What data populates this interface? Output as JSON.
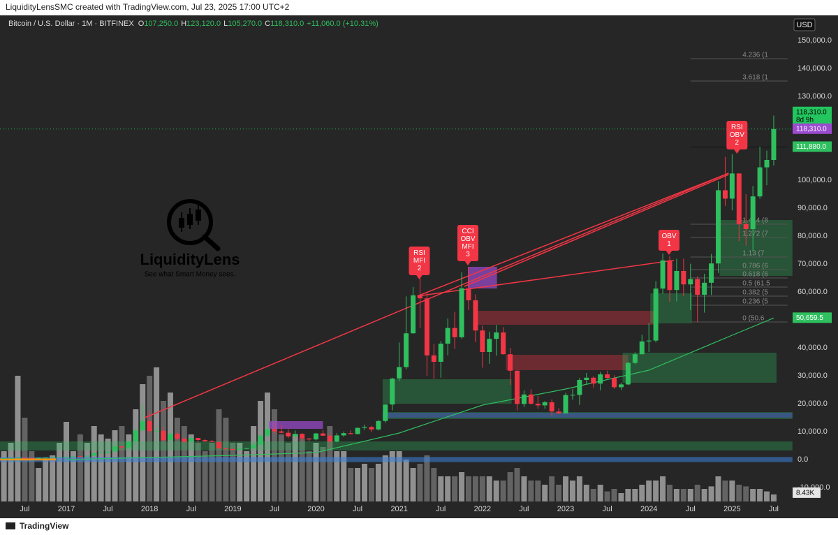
{
  "page": {
    "credit": "LiquidityLensSMC created with TradingView.com, Jul 23, 2025 17:00 UTC+2",
    "footer": "TradingView"
  },
  "chart_data": {
    "type": "candlestick",
    "symbol": "Bitcoin / U.S. Dollar · 1M · BITFINEX",
    "ohlc_header": [
      {
        "prefix": "O",
        "value": "107,250.0"
      },
      {
        "prefix": "H",
        "value": "123,120.0"
      },
      {
        "prefix": "L",
        "value": "105,270.0"
      },
      {
        "prefix": "C",
        "value": "118,310.0"
      }
    ],
    "change": "+11,060.0 (+10.31%)",
    "currency": "USD",
    "brand": {
      "name": "LiquidityLens",
      "tagline": "See what Smart Money sees."
    },
    "up_color": "#2fbf5f",
    "down_color": "#f23645",
    "volume_up_color": "#a3a3a3",
    "volume_down_color": "#6e6e6e",
    "categories": [
      null,
      null,
      null,
      "Jul",
      null,
      null,
      null,
      null,
      null,
      "2017",
      null,
      null,
      null,
      null,
      null,
      "Jul",
      null,
      null,
      null,
      null,
      null,
      "2018",
      null,
      null,
      null,
      null,
      null,
      "Jul",
      null,
      null,
      null,
      null,
      null,
      "2019",
      null,
      null,
      null,
      null,
      null,
      "Jul",
      null,
      null,
      null,
      null,
      null,
      "2020",
      null,
      null,
      null,
      null,
      null,
      "Jul",
      null,
      null,
      null,
      null,
      null,
      "2021",
      null,
      null,
      null,
      null,
      null,
      "Jul",
      null,
      null,
      null,
      null,
      null,
      "2022",
      null,
      null,
      null,
      null,
      null,
      "Jul",
      null,
      null,
      null,
      null,
      null,
      "2023",
      null,
      null,
      null,
      null,
      null,
      "Jul",
      null,
      null,
      null,
      null,
      null,
      "2024",
      null,
      null,
      null,
      null,
      null,
      "Jul",
      null,
      null,
      null,
      null,
      null,
      "2025",
      null,
      null,
      null,
      null,
      null,
      "Jul"
    ],
    "open": [
      416,
      448,
      531,
      673,
      624,
      575,
      609,
      700,
      745,
      963,
      970,
      1190,
      1080,
      1350,
      2300,
      2480,
      2880,
      4700,
      4340,
      6460,
      10400,
      13800,
      10200,
      10300,
      6900,
      9200,
      7500,
      6400,
      7730,
      7000,
      6600,
      6300,
      4000,
      3800,
      3450,
      3850,
      4100,
      5300,
      8600,
      10900,
      10100,
      9600,
      8300,
      9200,
      7550,
      7200,
      9350,
      8550,
      6430,
      8650,
      9450,
      9140,
      11350,
      11650,
      10780,
      13800,
      19700,
      29000,
      33100,
      45200,
      58800,
      57700,
      37300,
      35000,
      41500,
      47100,
      43800,
      61300,
      57000,
      46200,
      38500,
      43200,
      45500,
      37700,
      31800,
      19900,
      23300,
      20000,
      19400,
      20500,
      17200,
      16500,
      23100,
      23150,
      28500,
      29300,
      27200,
      30500,
      29200,
      25900,
      26900,
      34600,
      37700,
      42300,
      42600,
      61200,
      71300,
      60700,
      67500,
      62700,
      64600,
      59000,
      63300,
      70200,
      96400,
      93400,
      102400,
      84300,
      82500,
      94200,
      104600,
      107250
    ],
    "high": [
      470,
      550,
      780,
      705,
      626,
      630,
      740,
      757,
      975,
      1150,
      1200,
      1290,
      1400,
      2780,
      2990,
      2930,
      4770,
      5000,
      6470,
      11500,
      19700,
      17200,
      11800,
      11700,
      9800,
      10000,
      7780,
      8500,
      7780,
      7400,
      7000,
      6550,
      4300,
      4100,
      4200,
      4150,
      5620,
      9080,
      13900,
      13200,
      12300,
      10900,
      10400,
      9500,
      7750,
      9600,
      10500,
      9200,
      9470,
      10080,
      10400,
      11450,
      12480,
      12080,
      14100,
      19900,
      29300,
      41900,
      58400,
      61800,
      64900,
      59600,
      41300,
      42400,
      50500,
      52900,
      67000,
      69000,
      59100,
      47900,
      45800,
      48200,
      47400,
      40000,
      31900,
      24700,
      25200,
      22800,
      21000,
      21500,
      18400,
      23900,
      25300,
      29200,
      31000,
      29800,
      31400,
      31800,
      30200,
      27500,
      35000,
      38400,
      44700,
      48900,
      63900,
      73800,
      72800,
      71900,
      71900,
      70100,
      65600,
      66500,
      73600,
      99600,
      108300,
      109300,
      102500,
      95000,
      97900,
      112000,
      110600,
      123120
    ],
    "low": [
      415,
      436,
      520,
      600,
      470,
      570,
      605,
      685,
      740,
      750,
      920,
      890,
      1060,
      1350,
      2100,
      1830,
      2690,
      2970,
      4150,
      5500,
      10800,
      9400,
      6000,
      6600,
      6500,
      7000,
      5780,
      6070,
      5880,
      6100,
      6200,
      3600,
      3130,
      3350,
      3400,
      3700,
      4100,
      5300,
      7500,
      9100,
      9300,
      7700,
      7300,
      6500,
      6430,
      6850,
      8450,
      3850,
      6150,
      8130,
      8900,
      8980,
      10600,
      9850,
      10400,
      13200,
      17600,
      28100,
      32300,
      45000,
      47000,
      30000,
      28800,
      29300,
      37300,
      39600,
      43300,
      53500,
      42000,
      32900,
      34300,
      37200,
      37600,
      26700,
      17600,
      18800,
      19600,
      18200,
      18200,
      15500,
      16300,
      16500,
      21400,
      19600,
      26900,
      25800,
      24800,
      28900,
      25300,
      24900,
      26600,
      34100,
      37600,
      38500,
      41900,
      59300,
      56500,
      56600,
      58500,
      53500,
      49100,
      52600,
      58900,
      66800,
      90800,
      89200,
      78200,
      76600,
      74500,
      93400,
      98200,
      105270
    ],
    "close": [
      448,
      531,
      673,
      624,
      575,
      609,
      700,
      745,
      963,
      970,
      1190,
      1080,
      1350,
      2300,
      2480,
      2880,
      4700,
      4340,
      6460,
      10400,
      13800,
      10200,
      10300,
      6900,
      9200,
      7500,
      6400,
      7730,
      7000,
      6600,
      6300,
      4000,
      3800,
      3450,
      3850,
      4100,
      5300,
      8600,
      10900,
      10100,
      9600,
      8300,
      9200,
      7550,
      7200,
      9350,
      8550,
      6430,
      8650,
      9450,
      9140,
      11350,
      11650,
      10780,
      13800,
      19700,
      29000,
      33100,
      45200,
      58800,
      57700,
      37300,
      35000,
      41500,
      47100,
      43800,
      61300,
      57000,
      46200,
      38500,
      43200,
      45500,
      37700,
      31800,
      19900,
      23300,
      20000,
      19400,
      20500,
      17200,
      16500,
      23100,
      23150,
      28500,
      29300,
      27200,
      30500,
      29200,
      25900,
      26900,
      34600,
      37700,
      42300,
      42600,
      61200,
      71300,
      60700,
      67500,
      62700,
      64600,
      59000,
      63300,
      70200,
      96400,
      93400,
      102400,
      84300,
      82500,
      94200,
      104600,
      107250,
      118310
    ],
    "volume": [
      60,
      70,
      150,
      100,
      60,
      40,
      50,
      55,
      70,
      95,
      60,
      80,
      70,
      90,
      80,
      75,
      85,
      90,
      80,
      110,
      140,
      150,
      160,
      120,
      130,
      100,
      90,
      80,
      70,
      60,
      70,
      110,
      100,
      70,
      70,
      60,
      90,
      120,
      130,
      110,
      80,
      70,
      80,
      75,
      60,
      70,
      65,
      90,
      60,
      60,
      40,
      40,
      45,
      40,
      45,
      55,
      60,
      60,
      50,
      40,
      45,
      55,
      40,
      30,
      30,
      30,
      35,
      30,
      30,
      30,
      30,
      25,
      25,
      35,
      40,
      30,
      25,
      25,
      20,
      30,
      20,
      30,
      25,
      30,
      20,
      15,
      20,
      12,
      15,
      10,
      15,
      15,
      20,
      25,
      25,
      30,
      20,
      15,
      15,
      15,
      20,
      15,
      18,
      30,
      25,
      25,
      20,
      18,
      15,
      15,
      12,
      8.43
    ],
    "volume_lim": [
      0,
      580
    ],
    "volume_last_label": "8.43K",
    "ylim": [
      -15000,
      159000
    ],
    "yticks": [
      {
        "value": 150000,
        "label": "150,000.0"
      },
      {
        "value": 140000,
        "label": "140,000.0"
      },
      {
        "value": 130000,
        "label": "130,000.0"
      },
      {
        "value": 100000,
        "label": "100,000.0"
      },
      {
        "value": 90000,
        "label": "90,000.0"
      },
      {
        "value": 80000,
        "label": "80,000.0"
      },
      {
        "value": 70000,
        "label": "70,000.0"
      },
      {
        "value": 60000,
        "label": "60,000.0"
      },
      {
        "value": 40000,
        "label": "40,000.0"
      },
      {
        "value": 30000,
        "label": "30,000.0"
      },
      {
        "value": 20000,
        "label": "20,000.0"
      },
      {
        "value": 10000,
        "label": "10,000.0"
      },
      {
        "value": 0,
        "label": "0.0"
      },
      {
        "value": -10000,
        "label": "-10,000.0"
      }
    ],
    "grid": false,
    "price_labels": [
      {
        "value": 118310,
        "label": "118,310.0",
        "sub": "8d 9h",
        "color": "#22c55e"
      },
      {
        "value": 118310,
        "label": "118,310.0",
        "color": "#9c4bd0"
      },
      {
        "value": 111880,
        "label": "111,880.0",
        "color": "#2fbf5f"
      },
      {
        "value": 50659.5,
        "label": "50,659.5",
        "color": "#2fbf5f"
      }
    ],
    "moving_average": {
      "color": "#2fbf5f",
      "points": [
        [
          9,
          0
        ],
        [
          33,
          1500
        ],
        [
          45,
          2500
        ],
        [
          57,
          9500
        ],
        [
          69,
          19500
        ],
        [
          81,
          25250
        ],
        [
          93,
          32000
        ],
        [
          105,
          44500
        ],
        [
          111,
          50659.5
        ]
      ]
    },
    "trend_lines": [
      {
        "color": "#f23645",
        "points": [
          [
            20.3,
            15000
          ],
          [
            104.5,
            102500
          ]
        ]
      },
      {
        "color": "#f23645",
        "points": [
          [
            59.6,
            58500
          ],
          [
            104.5,
            102500
          ]
        ]
      },
      {
        "color": "#f23645",
        "points": [
          [
            66.4,
            62000
          ],
          [
            104.5,
            102000
          ]
        ]
      },
      {
        "color": "#f23645",
        "points": [
          [
            59.6,
            58500
          ],
          [
            96.6,
            71300
          ]
        ]
      }
    ],
    "zones": [
      {
        "i0": 67.9,
        "i1": 94.2,
        "v0": 48250,
        "v1": 53250,
        "color": "rgba(242,54,69,0.35)"
      },
      {
        "i0": 72.4,
        "i1": 90,
        "v0": 32000,
        "v1": 37500,
        "color": "rgba(242,54,69,0.35)"
      },
      {
        "i0": 66.9,
        "i1": 71.1,
        "v0": 61250,
        "v1": 69000,
        "color": "rgba(156,75,208,0.7)"
      },
      {
        "i0": 38.2,
        "i1": 46,
        "v0": 11000,
        "v1": 13750,
        "color": "rgba(156,75,208,0.7)"
      },
      {
        "i0": 54.6,
        "i1": 73.2,
        "v0": 20000,
        "v1": 28750,
        "color": "rgba(47,191,95,0.3)"
      },
      {
        "i0": 54.6,
        "i1": 113.7,
        "v0": 14500,
        "v1": 17000,
        "color": "rgba(47,191,95,0.3)"
      },
      {
        "i0": 54.6,
        "i1": 113.7,
        "v0": 15000,
        "v1": 16750,
        "color": "rgba(80,90,220,0.45)"
      },
      {
        "i0": 89.2,
        "i1": 111.4,
        "v0": 27500,
        "v1": 38250,
        "color": "rgba(47,191,95,0.3)"
      },
      {
        "i0": 93.2,
        "i1": 99.2,
        "v0": 48750,
        "v1": 59500,
        "color": "rgba(47,191,95,0.3)"
      },
      {
        "i0": 103.2,
        "i1": 113.7,
        "v0": 65750,
        "v1": 85750,
        "color": "rgba(47,191,95,0.3)"
      },
      {
        "i0": -0.6,
        "i1": 113.7,
        "v0": 3250,
        "v1": 6500,
        "color": "rgba(47,191,95,0.3)"
      },
      {
        "i0": -0.6,
        "i1": 113.7,
        "v0": -900,
        "v1": 900,
        "color": "rgba(60,130,220,0.55)"
      },
      {
        "i0": -0.6,
        "i1": 7.5,
        "v0": -300,
        "v1": 400,
        "color": "rgba(255,152,0,0.9)"
      }
    ],
    "fibs": [
      {
        "text": "4.236 (1",
        "value": 143500
      },
      {
        "text": "3.618 (1",
        "value": 135500
      },
      {
        "text": "1.414 (8",
        "value": 84250
      },
      {
        "text": "1.272 (7",
        "value": 79500
      },
      {
        "text": "1.13 (7",
        "value": 72500
      },
      {
        "text": "0.786 (6",
        "value": 68000
      },
      {
        "text": "0.618 (6",
        "value": 65000
      },
      {
        "text": "0.5 (61.5",
        "value": 61750
      },
      {
        "text": "0.382 (5",
        "value": 58500
      },
      {
        "text": "0.236 (5",
        "value": 55250
      },
      {
        "text": "0 (50.6",
        "value": 49250
      }
    ],
    "signals": [
      {
        "lines": [
          "RSI",
          "MFI",
          "2"
        ],
        "index": 59.9,
        "value": 64500
      },
      {
        "lines": [
          "CCI",
          "OBV",
          "MFI",
          "3"
        ],
        "index": 66.9,
        "value": 69500
      },
      {
        "lines": [
          "OBV",
          "1"
        ],
        "index": 95.9,
        "value": 73250
      },
      {
        "lines": [
          "RSI",
          "OBV",
          "2"
        ],
        "index": 105.7,
        "value": 109500
      }
    ]
  }
}
